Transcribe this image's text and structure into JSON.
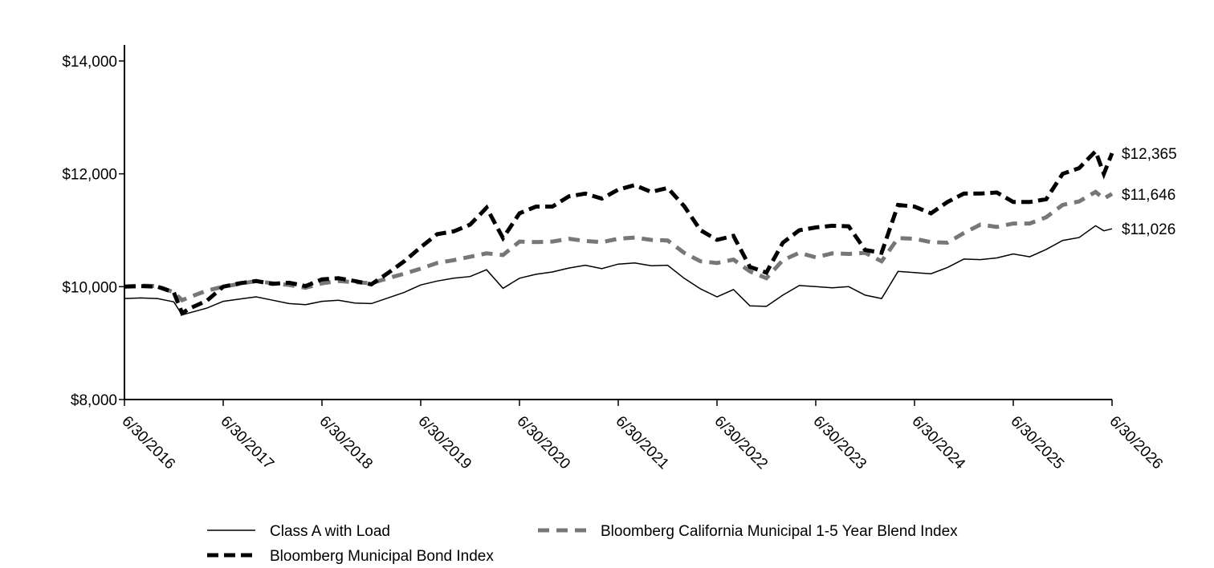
{
  "chart_data": {
    "type": "line",
    "y_ticks": [
      "$8,000",
      "$10,000",
      "$12,000",
      "$14,000"
    ],
    "ylim": [
      8000,
      14000
    ],
    "y_tick_values": [
      8000,
      10000,
      12000,
      14000
    ],
    "x_tick_labels": [
      "6/30/2016",
      "6/30/2017",
      "6/30/2018",
      "6/30/2019",
      "6/30/2020",
      "6/30/2021",
      "6/30/2022",
      "6/30/2023",
      "6/30/2024",
      "6/30/2025",
      "6/30/2026"
    ],
    "xlim": [
      0,
      120
    ],
    "grid": false,
    "legend_position": "bottom",
    "series": [
      {
        "name": "Class A with Load",
        "style": "solid-thin",
        "color": "#000000",
        "end_label": "$11,026",
        "x": [
          0,
          12,
          24,
          36,
          48,
          60,
          72,
          84,
          96,
          108,
          120
        ],
        "values": [
          9790,
          9740,
          9740,
          10030,
          10150,
          10410,
          9860,
          9950,
          10300,
          10660,
          11026
        ],
        "points": [
          [
            0,
            9790
          ],
          [
            2,
            9800
          ],
          [
            4,
            9790
          ],
          [
            5,
            9760
          ],
          [
            6,
            9730
          ],
          [
            7,
            9500
          ],
          [
            8,
            9540
          ],
          [
            10,
            9620
          ],
          [
            12,
            9740
          ],
          [
            14,
            9780
          ],
          [
            16,
            9820
          ],
          [
            18,
            9760
          ],
          [
            20,
            9700
          ],
          [
            22,
            9680
          ],
          [
            24,
            9740
          ],
          [
            26,
            9760
          ],
          [
            28,
            9710
          ],
          [
            30,
            9700
          ],
          [
            32,
            9800
          ],
          [
            34,
            9900
          ],
          [
            36,
            10030
          ],
          [
            38,
            10100
          ],
          [
            40,
            10150
          ],
          [
            42,
            10180
          ],
          [
            44,
            10300
          ],
          [
            46,
            9970
          ],
          [
            48,
            10150
          ],
          [
            50,
            10220
          ],
          [
            52,
            10260
          ],
          [
            54,
            10330
          ],
          [
            56,
            10380
          ],
          [
            58,
            10320
          ],
          [
            60,
            10400
          ],
          [
            62,
            10420
          ],
          [
            64,
            10370
          ],
          [
            66,
            10380
          ],
          [
            68,
            10150
          ],
          [
            70,
            9960
          ],
          [
            72,
            9820
          ],
          [
            74,
            9950
          ],
          [
            76,
            9660
          ],
          [
            78,
            9650
          ],
          [
            80,
            9850
          ],
          [
            82,
            10020
          ],
          [
            84,
            10000
          ],
          [
            86,
            9980
          ],
          [
            88,
            10000
          ],
          [
            90,
            9850
          ],
          [
            92,
            9790
          ],
          [
            94,
            10270
          ],
          [
            96,
            10250
          ],
          [
            98,
            10230
          ],
          [
            100,
            10340
          ],
          [
            102,
            10490
          ],
          [
            104,
            10480
          ],
          [
            106,
            10510
          ],
          [
            108,
            10580
          ],
          [
            110,
            10530
          ],
          [
            112,
            10660
          ],
          [
            114,
            10820
          ],
          [
            116,
            10870
          ],
          [
            118,
            11080
          ],
          [
            119,
            10990
          ],
          [
            120,
            11026
          ]
        ]
      },
      {
        "name": "Bloomberg California Municipal 1-5 Year Blend Index",
        "style": "dashed-gray",
        "color": "#777777",
        "end_label": "$11,646",
        "x": [
          0,
          12,
          24,
          36,
          48,
          60,
          72,
          84,
          96,
          108,
          120
        ],
        "values": [
          10000,
          10000,
          10060,
          10320,
          10800,
          10850,
          10420,
          10540,
          10860,
          11260,
          11646
        ],
        "points": [
          [
            0,
            10000
          ],
          [
            2,
            10020
          ],
          [
            4,
            10010
          ],
          [
            6,
            9900
          ],
          [
            7,
            9760
          ],
          [
            8,
            9820
          ],
          [
            10,
            9930
          ],
          [
            12,
            10000
          ],
          [
            14,
            10050
          ],
          [
            16,
            10100
          ],
          [
            18,
            10060
          ],
          [
            20,
            10030
          ],
          [
            22,
            9980
          ],
          [
            24,
            10060
          ],
          [
            26,
            10100
          ],
          [
            28,
            10080
          ],
          [
            30,
            10060
          ],
          [
            32,
            10150
          ],
          [
            34,
            10230
          ],
          [
            36,
            10320
          ],
          [
            38,
            10420
          ],
          [
            40,
            10470
          ],
          [
            42,
            10530
          ],
          [
            44,
            10590
          ],
          [
            46,
            10560
          ],
          [
            48,
            10800
          ],
          [
            50,
            10790
          ],
          [
            52,
            10800
          ],
          [
            54,
            10850
          ],
          [
            56,
            10810
          ],
          [
            58,
            10790
          ],
          [
            60,
            10850
          ],
          [
            62,
            10870
          ],
          [
            64,
            10830
          ],
          [
            66,
            10820
          ],
          [
            68,
            10600
          ],
          [
            70,
            10450
          ],
          [
            72,
            10420
          ],
          [
            74,
            10480
          ],
          [
            76,
            10270
          ],
          [
            78,
            10150
          ],
          [
            80,
            10470
          ],
          [
            82,
            10600
          ],
          [
            84,
            10520
          ],
          [
            86,
            10590
          ],
          [
            88,
            10580
          ],
          [
            90,
            10600
          ],
          [
            92,
            10450
          ],
          [
            94,
            10860
          ],
          [
            96,
            10850
          ],
          [
            98,
            10790
          ],
          [
            100,
            10780
          ],
          [
            102,
            10950
          ],
          [
            104,
            11100
          ],
          [
            106,
            11060
          ],
          [
            108,
            11120
          ],
          [
            110,
            11120
          ],
          [
            112,
            11230
          ],
          [
            114,
            11450
          ],
          [
            116,
            11510
          ],
          [
            118,
            11680
          ],
          [
            119,
            11560
          ],
          [
            120,
            11646
          ]
        ]
      },
      {
        "name": "Bloomberg Municipal Bond Index",
        "style": "dashed-black-thick",
        "color": "#000000",
        "end_label": "$12,365",
        "x": [
          0,
          12,
          24,
          36,
          48,
          60,
          72,
          84,
          96,
          108,
          120
        ],
        "values": [
          10000,
          10000,
          10130,
          10700,
          11300,
          11800,
          10830,
          11020,
          11580,
          11520,
          12365
        ],
        "points": [
          [
            0,
            10000
          ],
          [
            2,
            10010
          ],
          [
            4,
            10000
          ],
          [
            6,
            9900
          ],
          [
            7,
            9530
          ],
          [
            8,
            9620
          ],
          [
            10,
            9750
          ],
          [
            12,
            10000
          ],
          [
            14,
            10060
          ],
          [
            16,
            10100
          ],
          [
            18,
            10050
          ],
          [
            20,
            10070
          ],
          [
            22,
            10010
          ],
          [
            24,
            10130
          ],
          [
            26,
            10150
          ],
          [
            28,
            10100
          ],
          [
            30,
            10040
          ],
          [
            32,
            10240
          ],
          [
            34,
            10450
          ],
          [
            36,
            10700
          ],
          [
            38,
            10930
          ],
          [
            40,
            10980
          ],
          [
            42,
            11100
          ],
          [
            44,
            11400
          ],
          [
            46,
            10860
          ],
          [
            48,
            11300
          ],
          [
            50,
            11420
          ],
          [
            52,
            11420
          ],
          [
            54,
            11600
          ],
          [
            56,
            11650
          ],
          [
            58,
            11560
          ],
          [
            60,
            11720
          ],
          [
            62,
            11800
          ],
          [
            64,
            11680
          ],
          [
            66,
            11750
          ],
          [
            68,
            11430
          ],
          [
            70,
            11000
          ],
          [
            72,
            10830
          ],
          [
            74,
            10900
          ],
          [
            76,
            10350
          ],
          [
            78,
            10250
          ],
          [
            80,
            10780
          ],
          [
            82,
            11000
          ],
          [
            84,
            11050
          ],
          [
            86,
            11080
          ],
          [
            88,
            11070
          ],
          [
            90,
            10650
          ],
          [
            92,
            10600
          ],
          [
            94,
            11450
          ],
          [
            96,
            11420
          ],
          [
            98,
            11300
          ],
          [
            100,
            11500
          ],
          [
            102,
            11650
          ],
          [
            104,
            11650
          ],
          [
            106,
            11670
          ],
          [
            108,
            11500
          ],
          [
            110,
            11500
          ],
          [
            112,
            11550
          ],
          [
            114,
            12000
          ],
          [
            116,
            12100
          ],
          [
            118,
            12400
          ],
          [
            119,
            12000
          ],
          [
            120,
            12365
          ]
        ]
      }
    ]
  }
}
